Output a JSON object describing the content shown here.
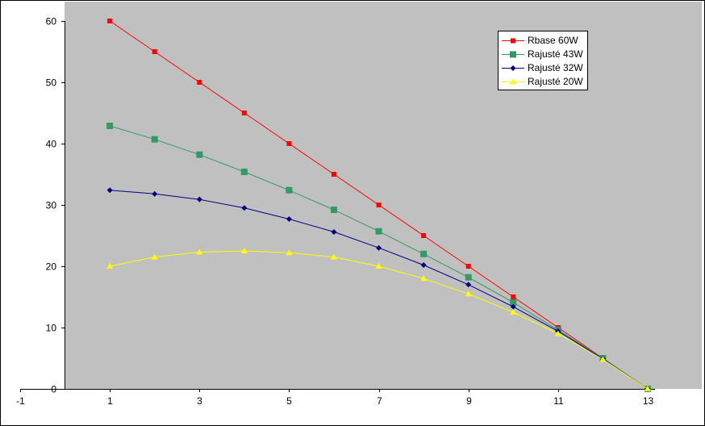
{
  "chart_data": {
    "type": "line",
    "title": "",
    "xlabel": "",
    "ylabel": "",
    "xlim": [
      -1,
      13
    ],
    "ylim": [
      0,
      60
    ],
    "x_ticks": [
      -1,
      1,
      3,
      5,
      7,
      9,
      11,
      13
    ],
    "y_ticks": [
      0,
      10,
      20,
      30,
      40,
      50,
      60
    ],
    "grid": false,
    "legend_position": "top-right",
    "background_color": "#c0c0c0",
    "series": [
      {
        "name": "Rbase 60W",
        "color": "#ff0000",
        "marker": "square-small",
        "x": [
          1,
          2,
          3,
          4,
          5,
          6,
          7,
          8,
          9,
          10,
          11,
          12,
          13
        ],
        "values": [
          60,
          55,
          50,
          45,
          40,
          35,
          30,
          25,
          20,
          15,
          10,
          5,
          0
        ]
      },
      {
        "name": "Rajusté 43W",
        "color": "#339966",
        "marker": "square",
        "x": [
          1,
          2,
          3,
          4,
          5,
          6,
          7,
          8,
          9,
          10,
          11,
          12,
          13
        ],
        "values": [
          42.9,
          40.7,
          38.2,
          35.4,
          32.4,
          29.2,
          25.7,
          22.0,
          18.2,
          14.1,
          9.6,
          5.0,
          0
        ]
      },
      {
        "name": "Rajusté 32W",
        "color": "#000080",
        "marker": "diamond",
        "x": [
          1,
          2,
          3,
          4,
          5,
          6,
          7,
          8,
          9,
          10,
          11,
          12,
          13
        ],
        "values": [
          32.4,
          31.8,
          30.9,
          29.5,
          27.7,
          25.6,
          23.0,
          20.2,
          17.0,
          13.4,
          9.4,
          4.9,
          0
        ]
      },
      {
        "name": "Rajusté 20W",
        "color": "#ffff00",
        "marker": "triangle",
        "x": [
          1,
          2,
          3,
          4,
          5,
          6,
          7,
          8,
          9,
          10,
          11,
          12,
          13
        ],
        "values": [
          20.0,
          21.5,
          22.3,
          22.5,
          22.2,
          21.5,
          20.0,
          18.0,
          15.5,
          12.5,
          9.0,
          4.8,
          0
        ]
      }
    ]
  }
}
